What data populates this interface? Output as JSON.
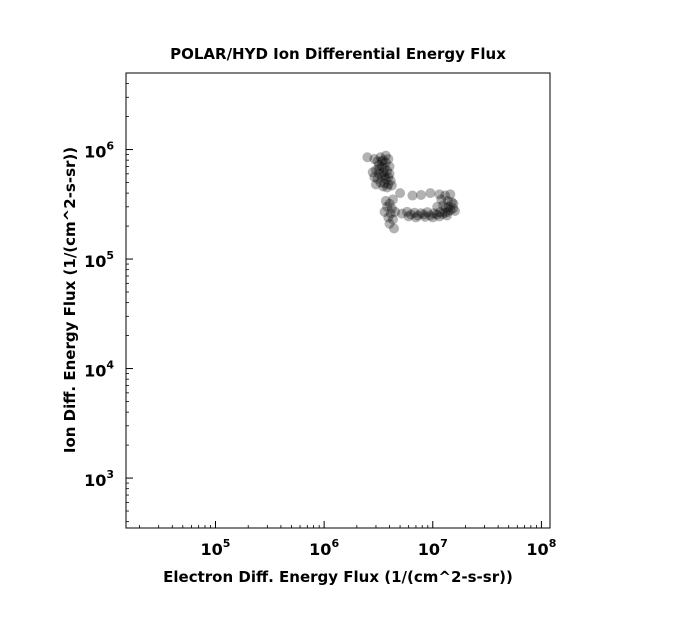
{
  "chart_data": {
    "type": "scatter",
    "title": "POLAR/HYD  Ion Differential Energy Flux",
    "xlabel": "Electron Diff. Energy Flux (1/(cm^2-s-sr))",
    "ylabel": "Ion Diff. Energy Flux (1/(cm^2-s-sr))",
    "xscale": "log",
    "yscale": "log",
    "xlim": [
      15000,
      120000000
    ],
    "ylim": [
      350,
      5000000
    ],
    "x_ticks": [
      {
        "base": "10",
        "exp": "5",
        "value": 100000
      },
      {
        "base": "10",
        "exp": "6",
        "value": 1000000
      },
      {
        "base": "10",
        "exp": "7",
        "value": 10000000
      },
      {
        "base": "10",
        "exp": "8",
        "value": 100000000
      }
    ],
    "y_ticks": [
      {
        "base": "10",
        "exp": "3",
        "value": 1000
      },
      {
        "base": "10",
        "exp": "4",
        "value": 10000
      },
      {
        "base": "10",
        "exp": "5",
        "value": 100000
      },
      {
        "base": "10",
        "exp": "6",
        "value": 1000000
      }
    ],
    "grid": false,
    "marker_color": "#000000",
    "marker_alpha": 0.3,
    "points": [
      {
        "x": 2500000,
        "y": 850000
      },
      {
        "x": 2900000,
        "y": 820000
      },
      {
        "x": 3100000,
        "y": 780000
      },
      {
        "x": 3300000,
        "y": 850000
      },
      {
        "x": 3500000,
        "y": 800000
      },
      {
        "x": 3700000,
        "y": 760000
      },
      {
        "x": 3900000,
        "y": 820000
      },
      {
        "x": 3200000,
        "y": 720000
      },
      {
        "x": 3400000,
        "y": 700000
      },
      {
        "x": 3600000,
        "y": 680000
      },
      {
        "x": 3000000,
        "y": 650000
      },
      {
        "x": 2800000,
        "y": 620000
      },
      {
        "x": 3200000,
        "y": 600000
      },
      {
        "x": 3500000,
        "y": 620000
      },
      {
        "x": 3800000,
        "y": 640000
      },
      {
        "x": 4000000,
        "y": 600000
      },
      {
        "x": 2900000,
        "y": 560000
      },
      {
        "x": 3100000,
        "y": 540000
      },
      {
        "x": 3400000,
        "y": 560000
      },
      {
        "x": 3700000,
        "y": 540000
      },
      {
        "x": 3900000,
        "y": 560000
      },
      {
        "x": 4100000,
        "y": 520000
      },
      {
        "x": 3300000,
        "y": 500000
      },
      {
        "x": 3600000,
        "y": 490000
      },
      {
        "x": 3900000,
        "y": 480000
      },
      {
        "x": 4200000,
        "y": 470000
      },
      {
        "x": 3500000,
        "y": 460000
      },
      {
        "x": 3800000,
        "y": 450000
      },
      {
        "x": 3000000,
        "y": 480000
      },
      {
        "x": 3200000,
        "y": 660000
      },
      {
        "x": 3600000,
        "y": 580000
      },
      {
        "x": 4000000,
        "y": 700000
      },
      {
        "x": 3400000,
        "y": 780000
      },
      {
        "x": 3700000,
        "y": 880000
      },
      {
        "x": 5000000,
        "y": 400000
      },
      {
        "x": 6500000,
        "y": 380000
      },
      {
        "x": 7800000,
        "y": 385000
      },
      {
        "x": 9500000,
        "y": 400000
      },
      {
        "x": 11500000,
        "y": 390000
      },
      {
        "x": 13000000,
        "y": 380000
      },
      {
        "x": 14500000,
        "y": 390000
      },
      {
        "x": 12000000,
        "y": 350000
      },
      {
        "x": 13800000,
        "y": 340000
      },
      {
        "x": 15000000,
        "y": 330000
      },
      {
        "x": 3700000,
        "y": 340000
      },
      {
        "x": 4000000,
        "y": 320000
      },
      {
        "x": 4300000,
        "y": 350000
      },
      {
        "x": 3800000,
        "y": 300000
      },
      {
        "x": 4200000,
        "y": 290000
      },
      {
        "x": 3600000,
        "y": 270000
      },
      {
        "x": 4100000,
        "y": 260000
      },
      {
        "x": 4500000,
        "y": 270000
      },
      {
        "x": 3900000,
        "y": 240000
      },
      {
        "x": 4300000,
        "y": 230000
      },
      {
        "x": 4000000,
        "y": 210000
      },
      {
        "x": 4400000,
        "y": 190000
      },
      {
        "x": 5200000,
        "y": 260000
      },
      {
        "x": 5800000,
        "y": 270000
      },
      {
        "x": 6300000,
        "y": 255000
      },
      {
        "x": 6800000,
        "y": 265000
      },
      {
        "x": 7300000,
        "y": 250000
      },
      {
        "x": 7800000,
        "y": 262000
      },
      {
        "x": 8300000,
        "y": 255000
      },
      {
        "x": 8900000,
        "y": 268000
      },
      {
        "x": 9500000,
        "y": 250000
      },
      {
        "x": 10200000,
        "y": 262000
      },
      {
        "x": 10900000,
        "y": 255000
      },
      {
        "x": 11600000,
        "y": 268000
      },
      {
        "x": 12300000,
        "y": 258000
      },
      {
        "x": 13000000,
        "y": 265000
      },
      {
        "x": 13800000,
        "y": 270000
      },
      {
        "x": 14600000,
        "y": 280000
      },
      {
        "x": 15400000,
        "y": 290000
      },
      {
        "x": 16000000,
        "y": 275000
      },
      {
        "x": 6000000,
        "y": 245000
      },
      {
        "x": 7000000,
        "y": 240000
      },
      {
        "x": 8500000,
        "y": 243000
      },
      {
        "x": 10000000,
        "y": 240000
      },
      {
        "x": 11500000,
        "y": 245000
      },
      {
        "x": 13500000,
        "y": 250000
      },
      {
        "x": 14000000,
        "y": 300000
      },
      {
        "x": 12500000,
        "y": 310000
      },
      {
        "x": 15500000,
        "y": 320000
      },
      {
        "x": 11000000,
        "y": 300000
      },
      {
        "x": 13200000,
        "y": 295000
      }
    ]
  }
}
